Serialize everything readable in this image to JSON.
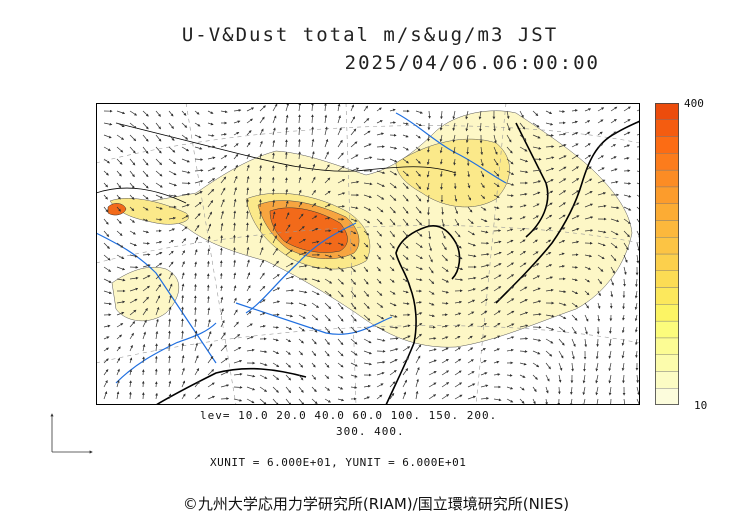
{
  "title": {
    "line1": "U-V&Dust total m/s&ug/m3 JST",
    "line2": "2025/04/06.06:00:00"
  },
  "colorbar": {
    "max_label": "400",
    "min_label": "10",
    "colors": [
      "#fcfcdc",
      "#fcfcc4",
      "#fcfcac",
      "#fcfc94",
      "#fcfc7c",
      "#fcf464",
      "#fce85c",
      "#fcdc54",
      "#fcd04c",
      "#fcc444",
      "#fcb83c",
      "#fcac34",
      "#fc9c2c",
      "#fc8c24",
      "#fc7c1c",
      "#fc6c14",
      "#f45c10",
      "#ec4c0c"
    ]
  },
  "levels": {
    "line1": "lev= 10.0 20.0 40.0 60.0 100. 150. 200.",
    "line2": "300. 400."
  },
  "units": "XUNIT = 6.000E+01, YUNIT = 6.000E+01",
  "credit": "©九州大学応用力学研究所(RIAM)/国立環境研究所(NIES)",
  "palette": {
    "dust_light": "#fdf7c6",
    "dust_mid": "#fbe98a",
    "dust_orange": "#f7a540",
    "dust_core": "#f26a1a",
    "rivers": "#1f6fe0",
    "coast": "#000000"
  }
}
